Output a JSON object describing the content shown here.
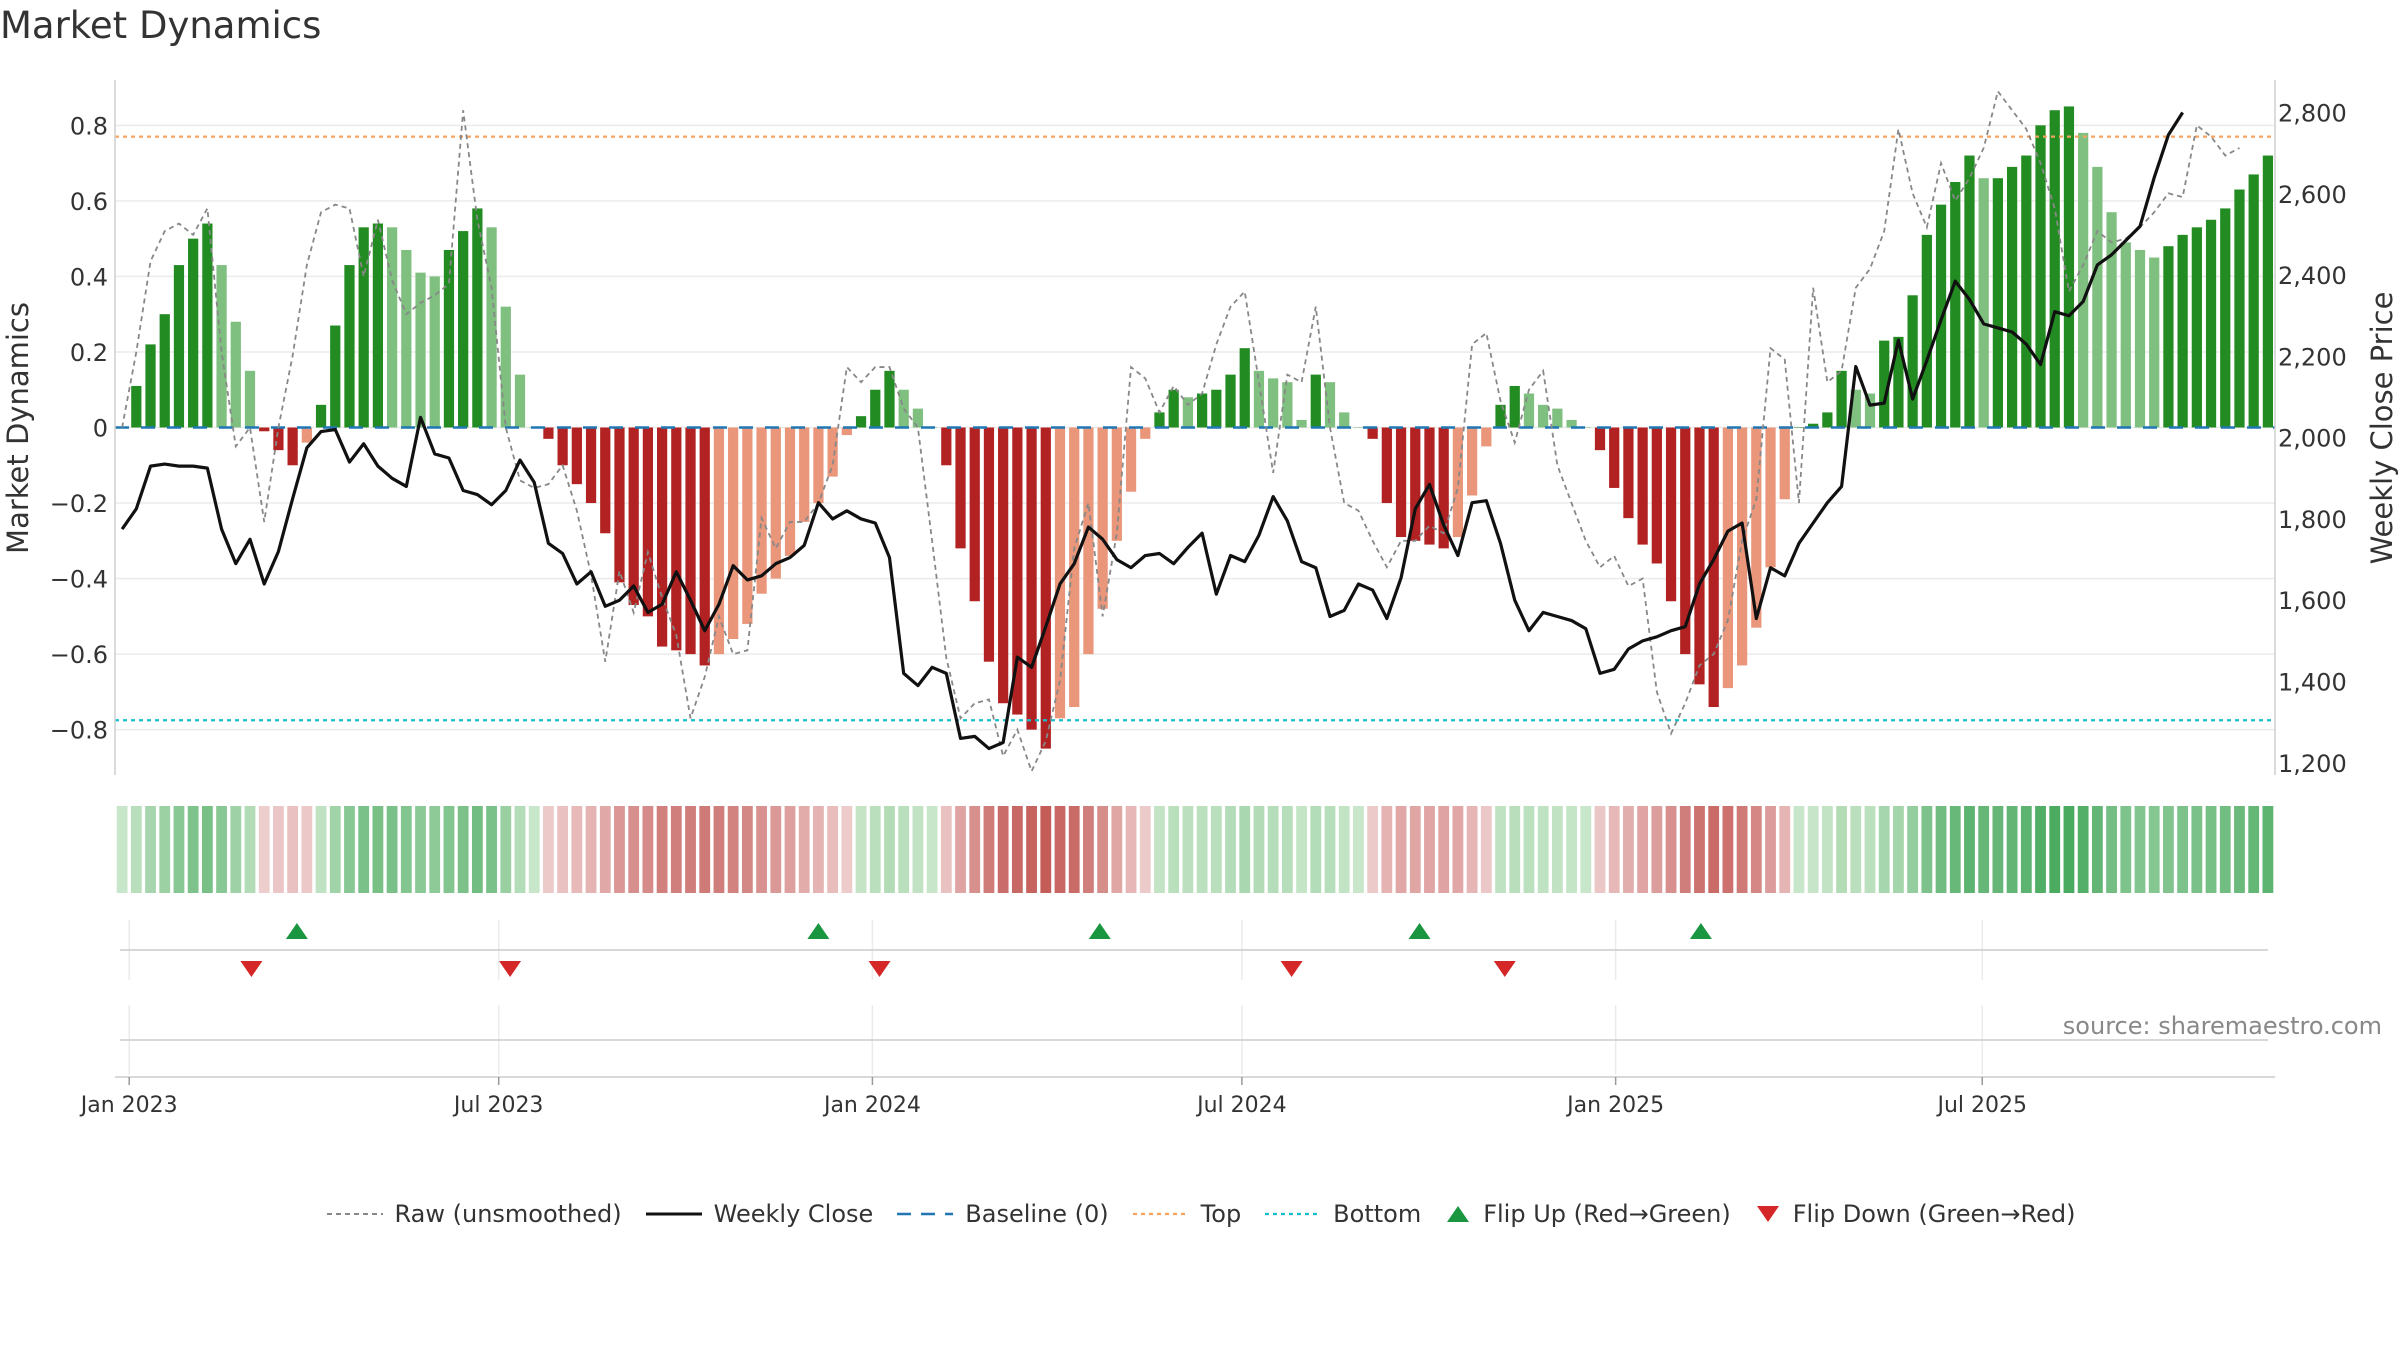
{
  "chart_data": {
    "type": "bar",
    "title": "Market Dynamics",
    "ylabel": "Market Dynamics",
    "y2label": "Weekly Close Price",
    "ylim": [
      -0.92,
      0.92
    ],
    "y2lim": [
      1170,
      2880
    ],
    "yticks": [
      -0.8,
      -0.6,
      -0.4,
      -0.2,
      0,
      0.2,
      0.4,
      0.6,
      0.8
    ],
    "ytick_labels": [
      "−0.8",
      "−0.6",
      "−0.4",
      "−0.2",
      "0",
      "0.2",
      "0.4",
      "0.6",
      "0.8"
    ],
    "y2ticks": [
      1200,
      1400,
      1600,
      1800,
      2000,
      2200,
      2400,
      2600,
      2800
    ],
    "y2tick_labels": [
      "1,200",
      "1,400",
      "1,600",
      "1,800",
      "2,000",
      "2,200",
      "2,400",
      "2,600",
      "2,800"
    ],
    "x_start_week": -1,
    "x_ticks": [
      {
        "label": "Jan 2023",
        "week": 0
      },
      {
        "label": "Jul 2023",
        "week": 26
      },
      {
        "label": "Jan 2024",
        "week": 52.3
      },
      {
        "label": "Jul 2024",
        "week": 78.3
      },
      {
        "label": "Jan 2025",
        "week": 104.6
      },
      {
        "label": "Jul 2025",
        "week": 130.4
      }
    ],
    "thresholds": {
      "baseline": 0,
      "top": 0.77,
      "bottom": -0.775
    },
    "colors": {
      "strong_green": "#228b22",
      "light_green": "#7fbf7f",
      "strong_red": "#b22222",
      "light_red": "#e9967a",
      "raw": "#888888",
      "close": "#111111",
      "baseline": "#1f77b4",
      "top": "#f4a460",
      "bottom": "#17becf",
      "flip_up": "#1a9641",
      "flip_down": "#d62728"
    },
    "series": [
      {
        "name": "Market Dynamics",
        "values": [
          0.0,
          0.11,
          0.22,
          0.3,
          0.43,
          0.5,
          0.54,
          0.43,
          0.28,
          0.15,
          -0.01,
          -0.06,
          -0.1,
          -0.04,
          0.06,
          0.27,
          0.43,
          0.53,
          0.54,
          0.53,
          0.47,
          0.41,
          0.4,
          0.47,
          0.52,
          0.58,
          0.53,
          0.32,
          0.14,
          0.0,
          -0.03,
          -0.1,
          -0.15,
          -0.2,
          -0.28,
          -0.41,
          -0.47,
          -0.5,
          -0.58,
          -0.59,
          -0.6,
          -0.63,
          -0.6,
          -0.56,
          -0.52,
          -0.44,
          -0.4,
          -0.34,
          -0.25,
          -0.2,
          -0.13,
          -0.02,
          0.03,
          0.1,
          0.15,
          0.1,
          0.05,
          0.0,
          -0.1,
          -0.32,
          -0.46,
          -0.62,
          -0.73,
          -0.76,
          -0.8,
          -0.85,
          -0.77,
          -0.74,
          -0.6,
          -0.48,
          -0.3,
          -0.17,
          -0.03,
          0.04,
          0.1,
          0.08,
          0.09,
          0.1,
          0.14,
          0.21,
          0.15,
          0.13,
          0.12,
          0.02,
          0.14,
          0.12,
          0.04,
          0.0,
          -0.03,
          -0.2,
          -0.29,
          -0.3,
          -0.31,
          -0.32,
          -0.29,
          -0.18,
          -0.05,
          0.06,
          0.11,
          0.09,
          0.06,
          0.05,
          0.02,
          0.0,
          -0.06,
          -0.16,
          -0.24,
          -0.31,
          -0.36,
          -0.46,
          -0.6,
          -0.68,
          -0.74,
          -0.69,
          -0.63,
          -0.53,
          -0.37,
          -0.19,
          0.0,
          0.01,
          0.04,
          0.15,
          0.1,
          0.09,
          0.23,
          0.24,
          0.35,
          0.51,
          0.59,
          0.65,
          0.72,
          0.66,
          0.66,
          0.69,
          0.72,
          0.8,
          0.84,
          0.85,
          0.78,
          0.69,
          0.57,
          0.49,
          0.47,
          0.45,
          0.48,
          0.51,
          0.53,
          0.55,
          0.58,
          0.63,
          0.67,
          0.72
        ]
      },
      {
        "name": "Raw (unsmoothed)",
        "values": [
          0.0,
          0.2,
          0.44,
          0.52,
          0.54,
          0.51,
          0.58,
          0.2,
          -0.05,
          0.0,
          -0.25,
          0.0,
          0.19,
          0.43,
          0.57,
          0.59,
          0.58,
          0.4,
          0.55,
          0.39,
          0.3,
          0.33,
          0.35,
          0.38,
          0.84,
          0.55,
          0.37,
          0.0,
          -0.14,
          -0.16,
          -0.15,
          -0.1,
          -0.22,
          -0.39,
          -0.62,
          -0.38,
          -0.49,
          -0.33,
          -0.45,
          -0.55,
          -0.77,
          -0.66,
          -0.5,
          -0.6,
          -0.59,
          -0.24,
          -0.32,
          -0.25,
          -0.25,
          -0.2,
          -0.1,
          0.16,
          0.12,
          0.16,
          0.16,
          0.05,
          0.0,
          -0.3,
          -0.61,
          -0.77,
          -0.73,
          -0.72,
          -0.87,
          -0.8,
          -0.91,
          -0.83,
          -0.67,
          -0.32,
          -0.2,
          -0.5,
          -0.28,
          0.16,
          0.13,
          0.04,
          0.11,
          0.06,
          0.09,
          0.22,
          0.32,
          0.36,
          0.12,
          -0.12,
          0.14,
          0.12,
          0.32,
          0.0,
          -0.2,
          -0.22,
          -0.3,
          -0.37,
          -0.3,
          -0.3,
          -0.26,
          -0.28,
          -0.16,
          0.22,
          0.25,
          0.07,
          -0.04,
          0.1,
          0.15,
          -0.1,
          -0.2,
          -0.3,
          -0.37,
          -0.34,
          -0.42,
          -0.4,
          -0.7,
          -0.81,
          -0.73,
          -0.63,
          -0.6,
          -0.51,
          -0.3,
          -0.19,
          0.21,
          0.18,
          -0.2,
          0.37,
          0.12,
          0.15,
          0.37,
          0.42,
          0.52,
          0.79,
          0.62,
          0.53,
          0.7,
          0.6,
          0.66,
          0.74,
          0.89,
          0.84,
          0.79,
          0.7,
          0.58,
          0.36,
          0.43,
          0.52,
          0.49,
          0.5,
          0.53,
          0.57,
          0.62,
          0.61,
          0.8,
          0.77,
          0.72,
          0.74
        ]
      },
      {
        "name": "Weekly Close",
        "values": [
          1775,
          1825,
          1930,
          1935,
          1930,
          1930,
          1925,
          1775,
          1690,
          1750,
          1640,
          1720,
          1850,
          1975,
          2015,
          2020,
          1940,
          1985,
          1930,
          1900,
          1880,
          2050,
          1960,
          1950,
          1870,
          1860,
          1835,
          1870,
          1945,
          1890,
          1740,
          1715,
          1640,
          1670,
          1585,
          1600,
          1635,
          1570,
          1590,
          1670,
          1600,
          1525,
          1590,
          1685,
          1650,
          1660,
          1690,
          1705,
          1735,
          1840,
          1800,
          1820,
          1800,
          1790,
          1705,
          1420,
          1390,
          1435,
          1420,
          1260,
          1265,
          1235,
          1250,
          1460,
          1435,
          1535,
          1640,
          1690,
          1780,
          1750,
          1700,
          1680,
          1710,
          1715,
          1690,
          1730,
          1765,
          1615,
          1710,
          1695,
          1760,
          1855,
          1795,
          1695,
          1680,
          1560,
          1575,
          1640,
          1625,
          1555,
          1655,
          1825,
          1885,
          1785,
          1710,
          1840,
          1845,
          1740,
          1600,
          1525,
          1570,
          1560,
          1550,
          1530,
          1420,
          1430,
          1480,
          1500,
          1510,
          1525,
          1535,
          1640,
          1700,
          1770,
          1790,
          1555,
          1680,
          1660,
          1740,
          1790,
          1840,
          1880,
          2175,
          2080,
          2085,
          2240,
          2095,
          2190,
          2290,
          2385,
          2340,
          2280,
          2270,
          2260,
          2230,
          2180,
          2310,
          2300,
          2335,
          2425,
          2450,
          2485,
          2520,
          2640,
          2745,
          2800
        ]
      }
    ],
    "heat_strip": {
      "values": [
        0.0,
        0.11,
        0.22,
        0.3,
        0.43,
        0.5,
        0.54,
        0.43,
        0.28,
        0.15,
        -0.01,
        -0.06,
        -0.1,
        -0.04,
        0.06,
        0.27,
        0.43,
        0.53,
        0.54,
        0.53,
        0.47,
        0.41,
        0.4,
        0.47,
        0.52,
        0.58,
        0.53,
        0.32,
        0.14,
        0.0,
        -0.03,
        -0.1,
        -0.15,
        -0.2,
        -0.28,
        -0.41,
        -0.47,
        -0.5,
        -0.58,
        -0.59,
        -0.6,
        -0.63,
        -0.6,
        -0.56,
        -0.52,
        -0.44,
        -0.4,
        -0.34,
        -0.25,
        -0.2,
        -0.13,
        -0.02,
        0.03,
        0.1,
        0.15,
        0.1,
        0.05,
        0.0,
        -0.1,
        -0.32,
        -0.46,
        -0.62,
        -0.73,
        -0.76,
        -0.8,
        -0.85,
        -0.77,
        -0.74,
        -0.6,
        -0.48,
        -0.3,
        -0.17,
        -0.03,
        0.04,
        0.1,
        0.08,
        0.09,
        0.1,
        0.14,
        0.21,
        0.15,
        0.13,
        0.12,
        0.02,
        0.14,
        0.12,
        0.04,
        0.0,
        -0.03,
        -0.2,
        -0.29,
        -0.3,
        -0.31,
        -0.32,
        -0.29,
        -0.18,
        -0.05,
        0.06,
        0.11,
        0.09,
        0.06,
        0.05,
        0.02,
        0.0,
        -0.06,
        -0.16,
        -0.24,
        -0.31,
        -0.36,
        -0.46,
        -0.6,
        -0.68,
        -0.74,
        -0.69,
        -0.63,
        -0.53,
        -0.37,
        -0.19,
        0.0,
        0.01,
        0.04,
        0.15,
        0.1,
        0.09,
        0.23,
        0.24,
        0.35,
        0.51,
        0.59,
        0.65,
        0.72,
        0.66,
        0.66,
        0.69,
        0.72,
        0.8,
        0.84,
        0.85,
        0.78,
        0.69,
        0.57,
        0.49,
        0.47,
        0.45,
        0.48,
        0.51,
        0.53,
        0.55,
        0.58,
        0.63,
        0.67,
        0.72
      ]
    },
    "flip_up_weeks": [
      11.8,
      48.5,
      68.3,
      90.8,
      110.6
    ],
    "flip_down_weeks": [
      8.6,
      26.8,
      52.8,
      81.8,
      96.8
    ]
  },
  "legend": [
    {
      "key": "raw",
      "label": "Raw (unsmoothed)"
    },
    {
      "key": "close",
      "label": "Weekly Close"
    },
    {
      "key": "baseline",
      "label": "Baseline (0)"
    },
    {
      "key": "top",
      "label": "Top"
    },
    {
      "key": "bottom",
      "label": "Bottom"
    },
    {
      "key": "flip_up",
      "label": "Flip Up (Red→Green)"
    },
    {
      "key": "flip_down",
      "label": "Flip Down (Green→Red)"
    }
  ],
  "source": "source: sharemaestro.com"
}
